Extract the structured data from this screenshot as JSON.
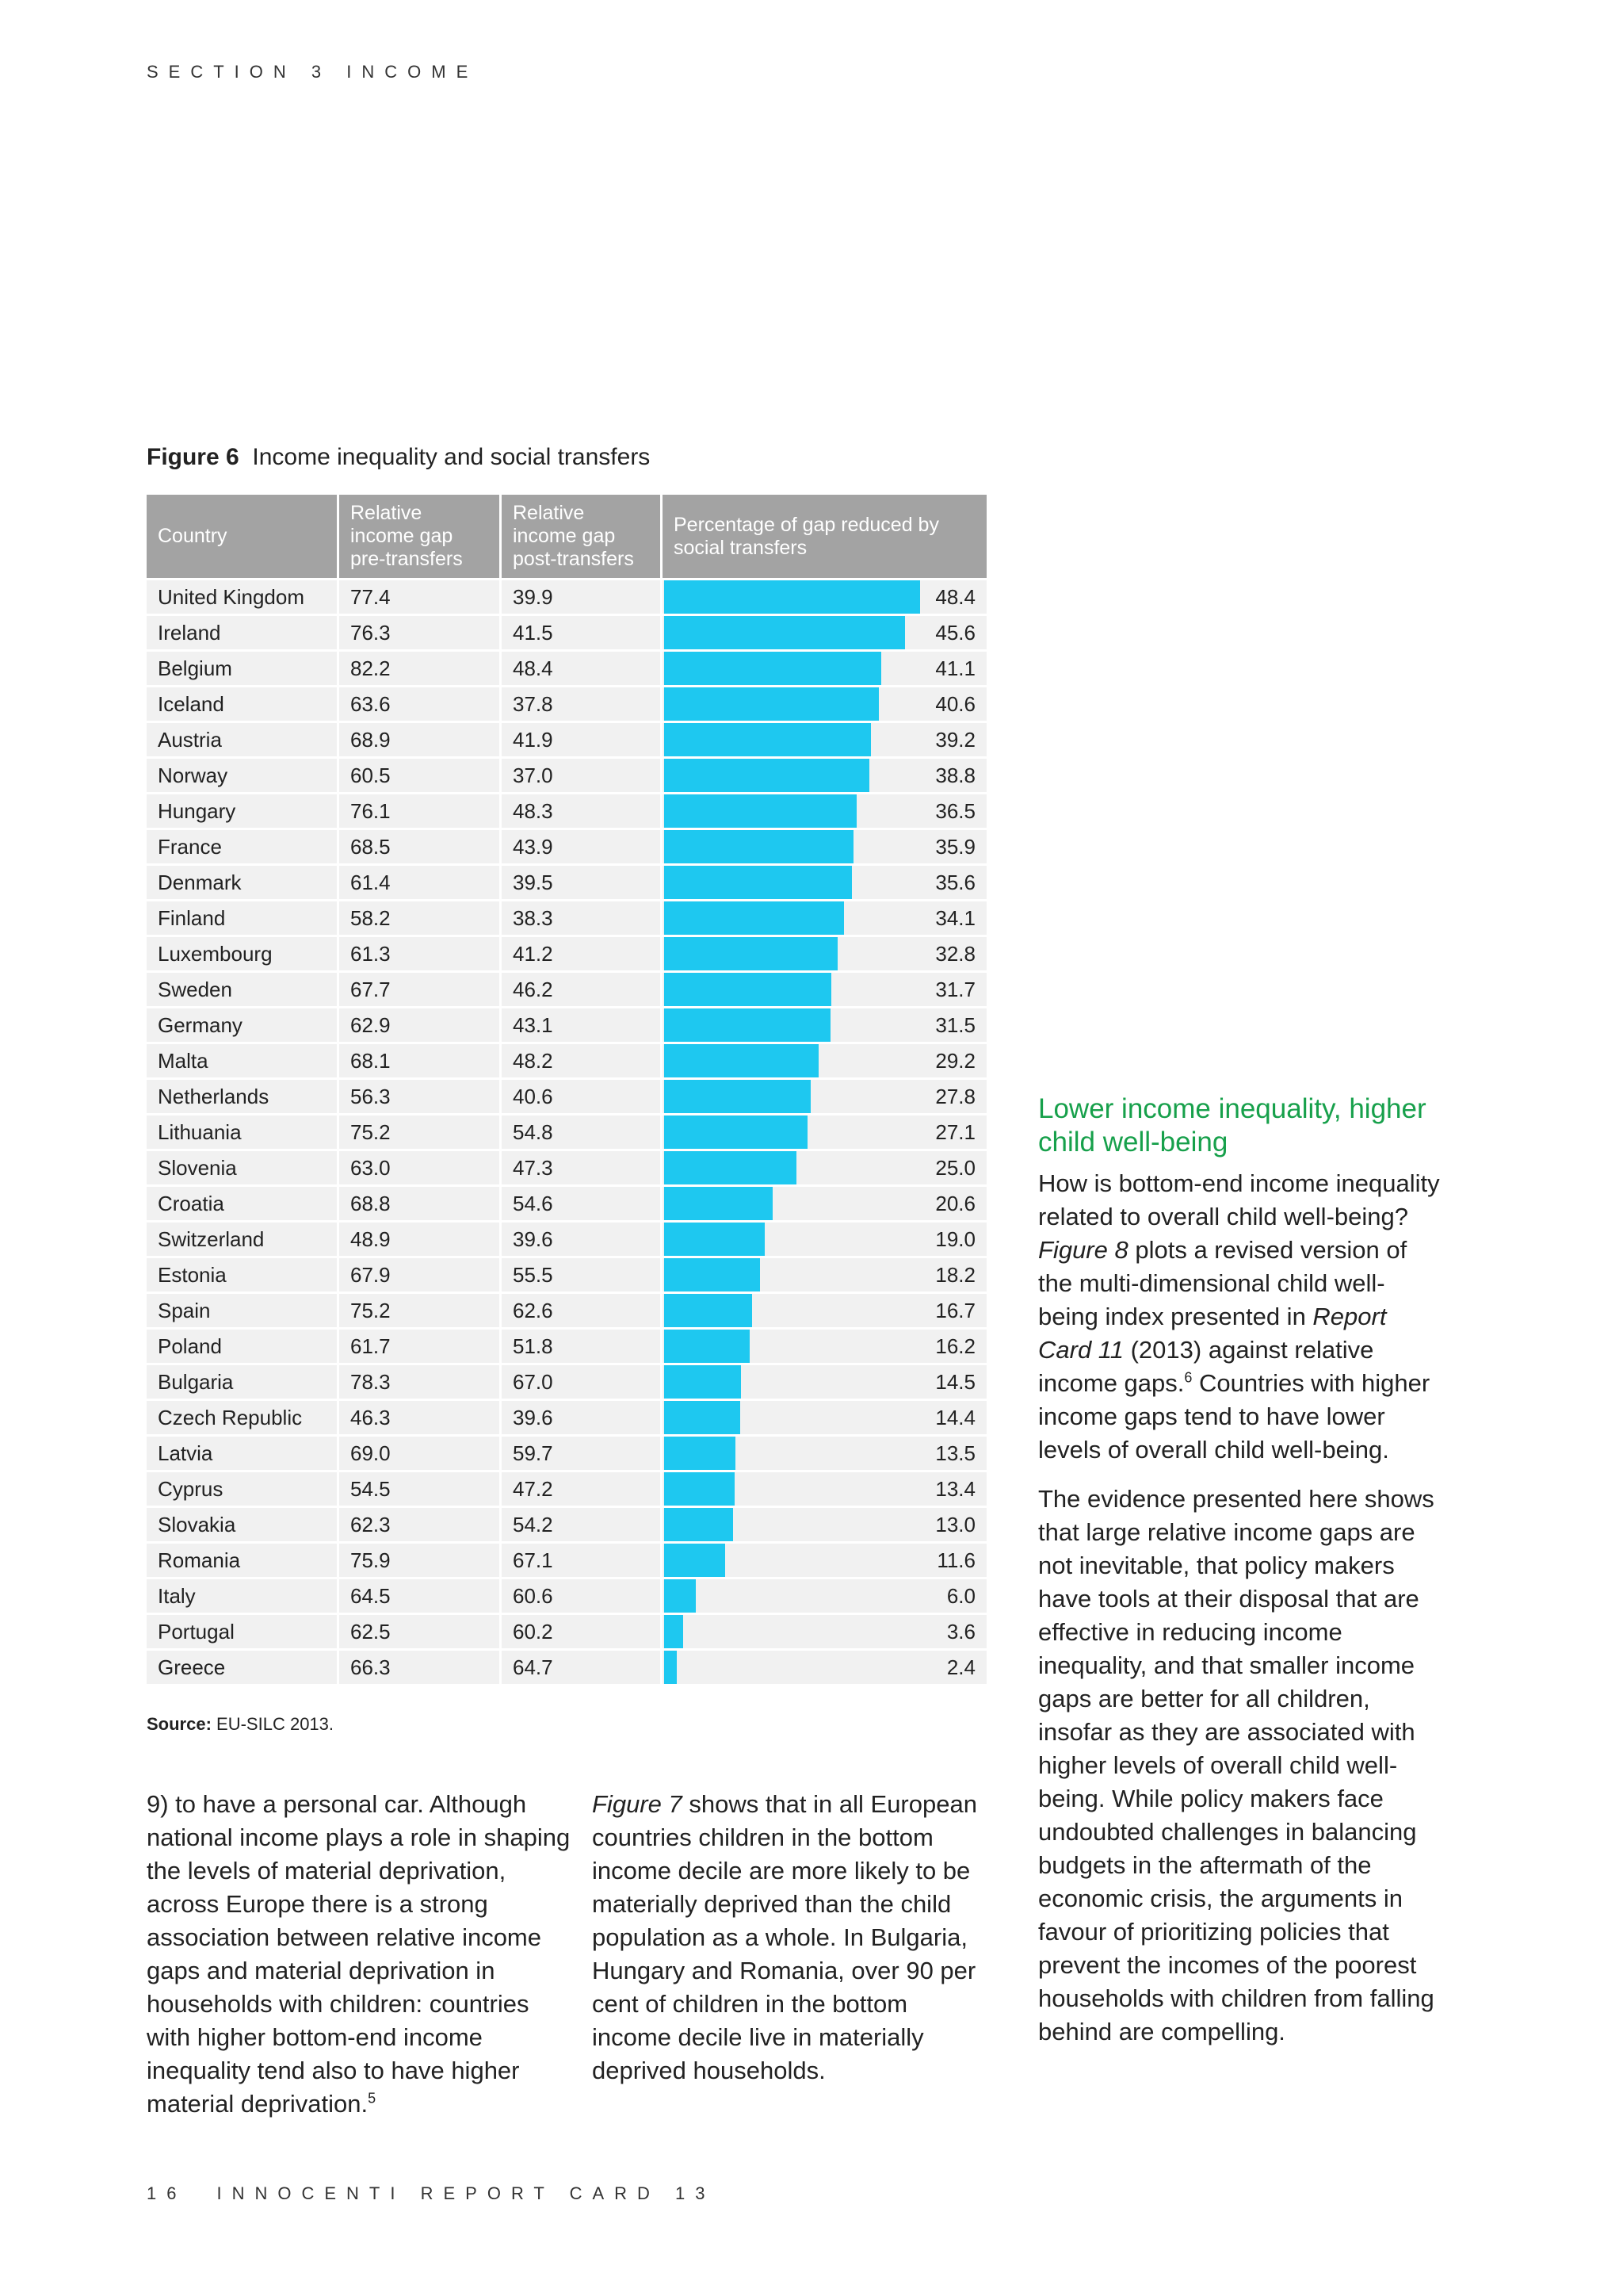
{
  "header": {
    "section": "SECTION 3 INCOME"
  },
  "figure": {
    "label": "Figure 6",
    "title": "Income inequality and social transfers",
    "columns": [
      "Country",
      "Relative income gap pre-transfers",
      "Relative income gap post-transfers",
      "Percentage of gap reduced by social transfers"
    ],
    "rows": [
      {
        "country": "United Kingdom",
        "pre": "77.4",
        "post": "39.9",
        "gap": 48.4
      },
      {
        "country": "Ireland",
        "pre": "76.3",
        "post": "41.5",
        "gap": 45.6
      },
      {
        "country": "Belgium",
        "pre": "82.2",
        "post": "48.4",
        "gap": 41.1
      },
      {
        "country": "Iceland",
        "pre": "63.6",
        "post": "37.8",
        "gap": 40.6
      },
      {
        "country": "Austria",
        "pre": "68.9",
        "post": "41.9",
        "gap": 39.2
      },
      {
        "country": "Norway",
        "pre": "60.5",
        "post": "37.0",
        "gap": 38.8
      },
      {
        "country": "Hungary",
        "pre": "76.1",
        "post": "48.3",
        "gap": 36.5
      },
      {
        "country": "France",
        "pre": "68.5",
        "post": "43.9",
        "gap": 35.9
      },
      {
        "country": "Denmark",
        "pre": "61.4",
        "post": "39.5",
        "gap": 35.6
      },
      {
        "country": "Finland",
        "pre": "58.2",
        "post": "38.3",
        "gap": 34.1
      },
      {
        "country": "Luxembourg",
        "pre": "61.3",
        "post": "41.2",
        "gap": 32.8
      },
      {
        "country": "Sweden",
        "pre": "67.7",
        "post": "46.2",
        "gap": 31.7
      },
      {
        "country": "Germany",
        "pre": "62.9",
        "post": "43.1",
        "gap": 31.5
      },
      {
        "country": "Malta",
        "pre": "68.1",
        "post": "48.2",
        "gap": 29.2
      },
      {
        "country": "Netherlands",
        "pre": "56.3",
        "post": "40.6",
        "gap": 27.8
      },
      {
        "country": "Lithuania",
        "pre": "75.2",
        "post": "54.8",
        "gap": 27.1
      },
      {
        "country": "Slovenia",
        "pre": "63.0",
        "post": "47.3",
        "gap": {
          "value": 25,
          "label": "25.0"
        }
      },
      {
        "country": "Croatia",
        "pre": "68.8",
        "post": "54.6",
        "gap": 20.6
      },
      {
        "country": "Switzerland",
        "pre": "48.9",
        "post": "39.6",
        "gap": {
          "value": 19,
          "label": "19.0"
        }
      },
      {
        "country": "Estonia",
        "pre": "67.9",
        "post": "55.5",
        "gap": 18.2
      },
      {
        "country": "Spain",
        "pre": "75.2",
        "post": "62.6",
        "gap": 16.7
      },
      {
        "country": "Poland",
        "pre": "61.7",
        "post": "51.8",
        "gap": 16.2
      },
      {
        "country": "Bulgaria",
        "pre": "78.3",
        "post": "67.0",
        "gap": 14.5
      },
      {
        "country": "Czech Republic",
        "pre": "46.3",
        "post": "39.6",
        "gap": 14.4
      },
      {
        "country": "Latvia",
        "pre": "69.0",
        "post": "59.7",
        "gap": 13.5
      },
      {
        "country": "Cyprus",
        "pre": "54.5",
        "post": "47.2",
        "gap": 13.4
      },
      {
        "country": "Slovakia",
        "pre": "62.3",
        "post": "54.2",
        "gap": {
          "value": 13,
          "label": "13.0"
        }
      },
      {
        "country": "Romania",
        "pre": "75.9",
        "post": "67.1",
        "gap": 11.6
      },
      {
        "country": "Italy",
        "pre": "64.5",
        "post": "60.6",
        "gap": {
          "value": 6,
          "label": "6.0"
        }
      },
      {
        "country": "Portugal",
        "pre": "62.5",
        "post": "60.2",
        "gap": 3.6
      },
      {
        "country": "Greece",
        "pre": "66.3",
        "post": "64.7",
        "gap": 2.4
      }
    ],
    "source_label": "Source:",
    "source": "EU-SILC 2013."
  },
  "body": {
    "col1": [
      "9) to have a personal car. Although national income plays a role in shaping the levels of material deprivation, across Europe there is a strong association between relative income gaps and material deprivation in households with children: countries with higher bottom-end income inequality tend also to have higher material deprivation.",
      "5"
    ],
    "col2": [
      "Figure 7",
      " shows that in all European countries children in the bottom income decile are more likely to be materially deprived than the child population as a whole. In Bulgaria, Hungary and Romania, over 90 per cent of children in the bottom income decile live in materially deprived households."
    ],
    "heading": "Lower income inequality, higher child well-being",
    "col3p1": [
      "How is bottom-end income inequality related to overall child well-being? ",
      "Figure 8",
      " plots a revised version of the multi-dimensional child well-being index presented in ",
      "Report Card 11",
      " (2013) against relative income gaps.",
      "6",
      " Countries with higher income gaps tend to have lower levels of overall child well-being."
    ],
    "col3p2": "The evidence presented here shows that large relative income gaps are not inevitable, that policy makers have tools at their disposal that are effective in reducing income inequality, and that smaller income gaps are better for all children, insofar as they are associated with higher levels of overall child well-being. While policy makers face undoubted challenges in balancing budgets in the aftermath of the economic crisis, the arguments in favour of prioritizing policies that prevent the incomes of the poorest households with children from falling behind are compelling."
  },
  "footer": {
    "page": "16",
    "publication": "INNOCENTI REPORT CARD 13"
  }
}
